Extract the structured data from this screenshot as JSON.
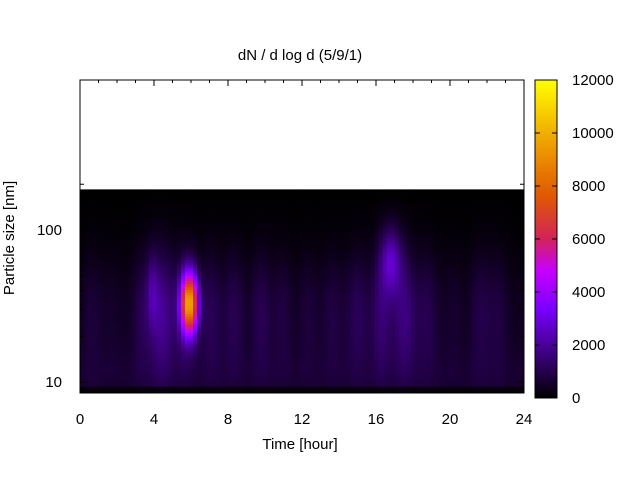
{
  "chart_data": {
    "type": "heatmap",
    "title": "dN / d log d (5/9/1)",
    "xlabel": "Time [hour]",
    "ylabel": "Particle size [nm]",
    "xlim": [
      0,
      24
    ],
    "ylim": [
      8.3,
      185
    ],
    "y_scale": "log",
    "x_ticks": [
      "0",
      "4",
      "8",
      "12",
      "16",
      "20",
      "24"
    ],
    "y_ticks": [
      "10",
      "100"
    ],
    "colorbar": {
      "range": [
        0,
        12000
      ],
      "ticks": [
        "0",
        "2000",
        "4000",
        "6000",
        "8000",
        "10000",
        "12000"
      ],
      "colormap": [
        "#000000",
        "#3d007f",
        "#7a00ff",
        "#c800ff",
        "#d2235a",
        "#e05a00",
        "#f0a800",
        "#ffff00"
      ]
    },
    "features": [
      {
        "time_hour": 5.9,
        "size_nm": 32,
        "peak_value": 10000
      },
      {
        "time_hour": 16.8,
        "size_nm": 60,
        "peak_value": 3800
      },
      {
        "time_hour": 4.0,
        "size_nm": 40,
        "peak_value": 2600
      }
    ],
    "grid": false
  }
}
